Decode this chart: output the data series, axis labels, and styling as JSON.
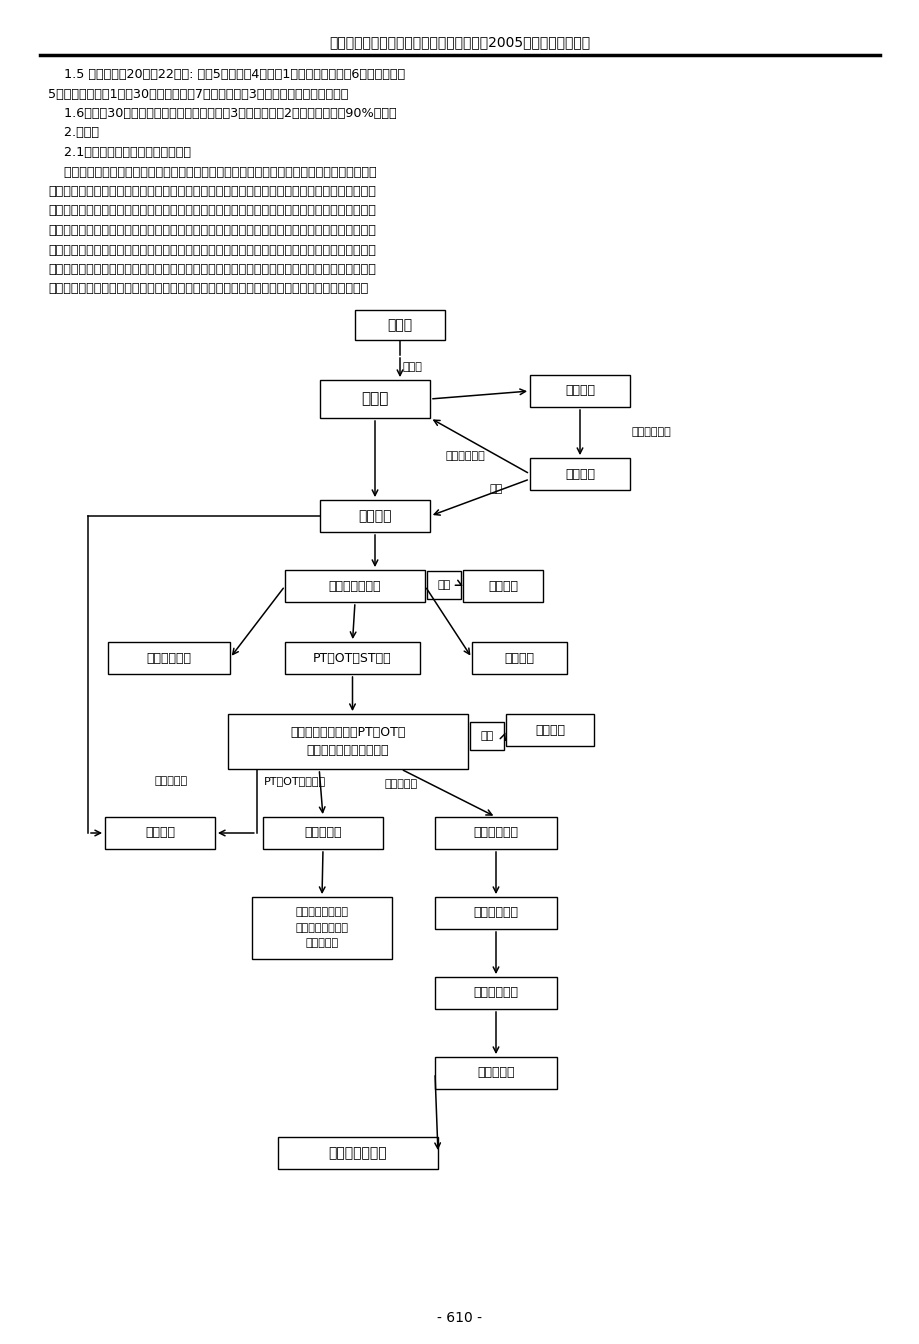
{
  "title": "广东省康复医学会、广东省残疾人康复协会2005学术年会论文汇编",
  "page_number": "- 610 -",
  "background_color": "#ffffff",
  "body_text_lines": [
    "    1.5 新安装假肢20人（22条）: 上臂5条，前臂4条，腕1条，带膝关节假肢6条，小腿假肢",
    "5条，踝以下假肢1条。30例病人中，有7例更换假肢，3例因各种原因未安装假肢。",
    "    1.6随访：30例工伤病人者得以随访，最长的3年多，最短的2月。疗效满意者90%以上。",
    "    2.讨论：",
    "    2.1工伤病人假肢安装及康复程序：",
    "    工伤发生后，工伤所在单位或企业向医鉴定中心报工伤，接到工伤报告后，由医鉴中心医生建",
    "档建卡并进行追踪，当确定病人可以安装假肢及康复时，及时将病人转入我工伤康复医院。入院后",
    "流程：接待检查病人，书写入院记录；行各项检查，开出各种评定由运动治疗师、作业治疗师、理",
    "疗师、心理治疗师、义肢矫形师、医生及护士对患者残肢及各方面情况进行评定，而后组织由上述",
    "人员参加的评定会，为其制定康复治疗方案，行义肢安装前的训练，包括肌力耐力、关节活动度、",
    "残端的进一步定型等；安装临时假肢训练；当安装假肢后，训练其穿戴、使用，并进一步调试，上",
    "肢还要训练其控制能力等，下肢还要包括步态训练。出院后还必须交待其注意事项。（流程图）"
  ]
}
